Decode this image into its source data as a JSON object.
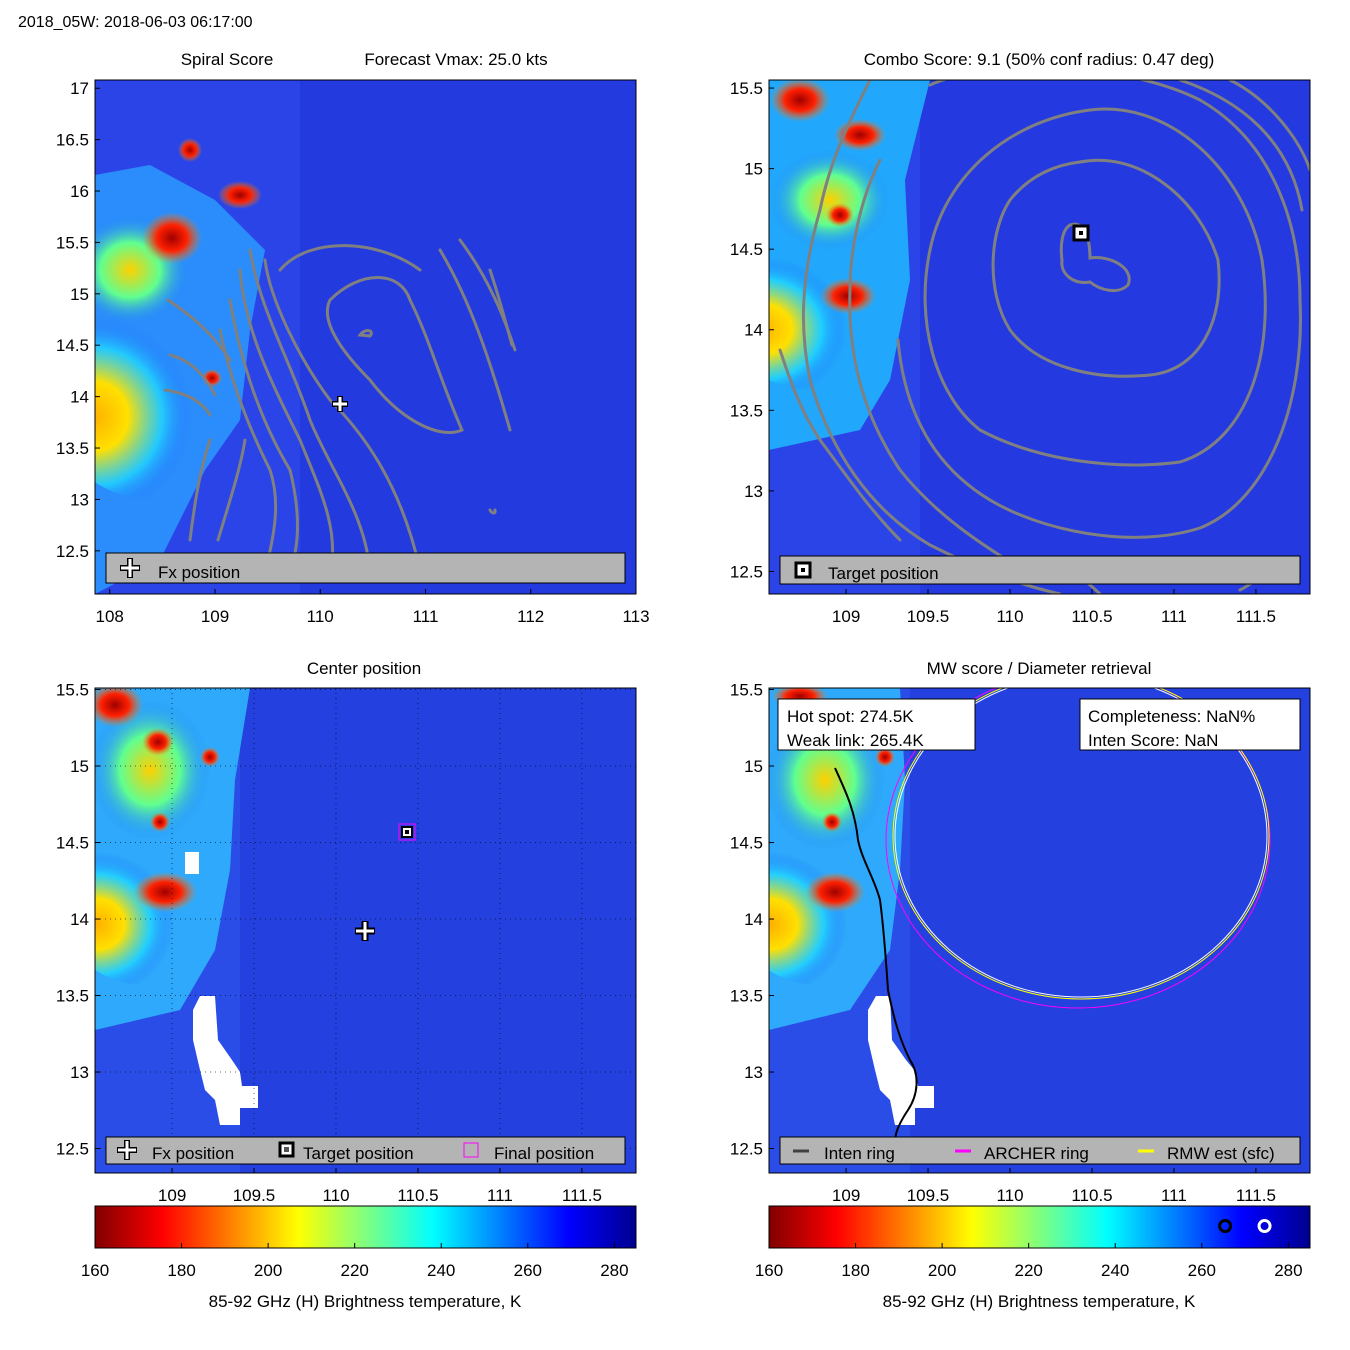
{
  "header": {
    "title": "2018_05W: 2018-06-03 06:17:00"
  },
  "panels": {
    "spiral": {
      "title_left": "Spiral Score",
      "title_right": "Forecast Vmax: 25.0 kts",
      "legend": {
        "fx": "Fx position"
      }
    },
    "combo": {
      "title": "Combo Score: 9.1  (50% conf radius: 0.47 deg)",
      "legend": {
        "target": "Target position"
      }
    },
    "center": {
      "title": "Center position",
      "legend": {
        "fx": "Fx position",
        "target": "Target position",
        "final": "Final position"
      }
    },
    "mw": {
      "title": "MW score / Diameter retrieval",
      "box_left": {
        "hot_spot": "Hot spot: 274.5K",
        "weak_link": "Weak link: 265.4K"
      },
      "box_right": {
        "completeness": "Completeness: NaN%",
        "inten_score": "Inten Score: NaN"
      },
      "legend": {
        "inten": "Inten ring",
        "archer": "ARCHER ring",
        "rmw": "RMW est (sfc)"
      }
    }
  },
  "colorbar": {
    "label": "85-92 GHz (H) Brightness temperature, K"
  },
  "colors": {
    "contour": "#808080",
    "legend_bg": "#b4b4b4",
    "inten_ring": "#000000",
    "archer_ring": "#ff00ff",
    "rmw_ring": "#ffff00"
  },
  "chart_data": [
    {
      "id": "spiral",
      "type": "heatmap",
      "title": "Spiral Score",
      "subtitle": "Forecast Vmax: 25.0 kts",
      "xlim": [
        107.86,
        113.0
      ],
      "ylim": [
        12.08,
        17.08
      ],
      "xticks": [
        108,
        109,
        110,
        111,
        112,
        113
      ],
      "yticks": [
        12.5,
        13,
        13.5,
        14,
        14.5,
        15,
        15.5,
        16,
        16.5,
        17
      ],
      "overlay": "contours",
      "markers": [
        {
          "name": "Fx position",
          "x": 110.19,
          "y": 13.93
        }
      ]
    },
    {
      "id": "combo",
      "type": "heatmap",
      "title": "Combo Score: 9.1  (50% conf radius: 0.47 deg)",
      "xlim": [
        108.53,
        111.83
      ],
      "ylim": [
        12.36,
        15.55
      ],
      "xticks": [
        109,
        109.5,
        110,
        110.5,
        111,
        111.5
      ],
      "yticks": [
        12.5,
        13,
        13.5,
        14,
        14.5,
        15,
        15.5
      ],
      "overlay": "contours",
      "markers": [
        {
          "name": "Target position",
          "x": 110.43,
          "y": 14.59
        }
      ]
    },
    {
      "id": "center",
      "type": "heatmap",
      "title": "Center position",
      "xlim": [
        108.53,
        111.83
      ],
      "ylim": [
        12.34,
        15.51
      ],
      "xticks": [
        109,
        109.5,
        110,
        110.5,
        111,
        111.5
      ],
      "yticks": [
        12.5,
        13,
        13.5,
        14,
        14.5,
        15,
        15.5
      ],
      "grid": true,
      "markers": [
        {
          "name": "Fx position",
          "x": 110.19,
          "y": 13.93
        },
        {
          "name": "Target position",
          "x": 110.43,
          "y": 14.59
        },
        {
          "name": "Final position",
          "x": 110.43,
          "y": 14.59
        }
      ]
    },
    {
      "id": "mw",
      "type": "heatmap",
      "title": "MW score / Diameter retrieval",
      "xlim": [
        108.53,
        111.83
      ],
      "ylim": [
        12.34,
        15.51
      ],
      "xticks": [
        109,
        109.5,
        110,
        110.5,
        111,
        111.5
      ],
      "yticks": [
        12.5,
        13,
        13.5,
        14,
        14.5,
        15,
        15.5
      ],
      "rings": [
        {
          "name": "ARCHER ring",
          "center_x": 110.43,
          "center_y": 14.59,
          "radius_deg": 1.17
        },
        {
          "name": "RMW est (sfc)",
          "center_x": 110.43,
          "center_y": 14.59,
          "radius_deg": 1.15
        }
      ]
    },
    {
      "id": "colorbar",
      "type": "colorbar",
      "range": [
        160,
        285
      ],
      "ticks": [
        160,
        180,
        200,
        220,
        240,
        260,
        280
      ],
      "label": "85-92 GHz (H) Brightness temperature, K",
      "markers": [
        {
          "name": "weak link",
          "value": 265.4
        },
        {
          "name": "hot spot",
          "value": 274.5
        }
      ]
    }
  ]
}
